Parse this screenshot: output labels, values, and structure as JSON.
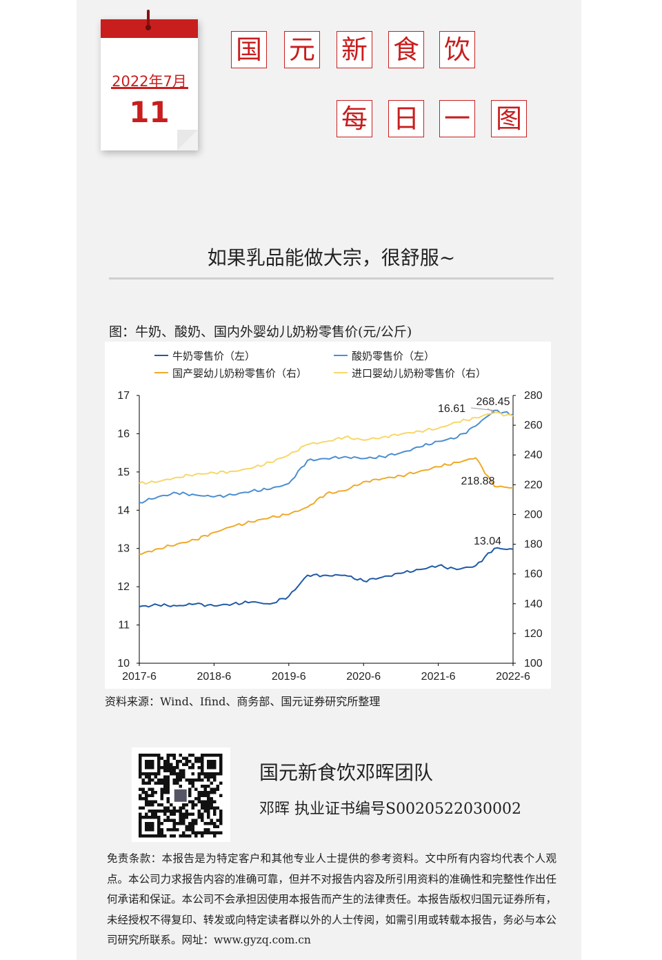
{
  "calendar": {
    "month": "2022年7月",
    "day": "11"
  },
  "title_chars": [
    "国",
    "元",
    "新",
    "食",
    "饮",
    "每",
    "日",
    "一",
    "图"
  ],
  "headline": "如果乳品能做大宗，很舒服~",
  "figure_title": "图：牛奶、酸奶、国内外婴幼儿奶粉零售价(元/公斤)",
  "source": "资料来源：Wind、Ifind、商务部、国元证券研究所整理",
  "team": "国元新食饮邓晖团队",
  "cert": "邓晖  执业证书编号S0020522030002",
  "disclaimer": "免责条款：本报告是为特定客户和其他专业人士提供的参考资料。文中所有内容均代表个人观点。本公司力求报告内容的准确可靠，但并不对报告内容及所引用资料的准确性和完整性作出任何承诺和保证。本公司不会承担因使用本报告而产生的法律责任。本报告版权归国元证券所有，未经授权不得复印、转发或向特定读者群以外的人士传阅，如需引用或转载本报告，务必与本公司研究所联系。网址：www.gyzq.com.cn",
  "chart_data": {
    "type": "line",
    "title": "",
    "x": [
      "2017-6",
      "2017-9",
      "2017-12",
      "2018-3",
      "2018-6",
      "2018-9",
      "2018-12",
      "2019-3",
      "2019-6",
      "2019-9",
      "2019-12",
      "2020-3",
      "2020-6",
      "2020-9",
      "2020-12",
      "2021-3",
      "2021-6",
      "2021-9",
      "2021-12",
      "2022-3",
      "2022-6"
    ],
    "x_ticks": [
      "2017-6",
      "2018-6",
      "2019-6",
      "2020-6",
      "2021-6",
      "2022-6"
    ],
    "left_axis": {
      "ylim": [
        10,
        17
      ],
      "ticks": [
        "10",
        "11",
        "12",
        "13",
        "14",
        "15",
        "16",
        "17"
      ]
    },
    "right_axis": {
      "ylim": [
        100,
        280
      ],
      "ticks": [
        "100",
        "120",
        "140",
        "160",
        "180",
        "200",
        "220",
        "240",
        "260",
        "280"
      ]
    },
    "series": [
      {
        "name": "牛奶零售价（左）",
        "axis": "left",
        "color": "#1f5aa6",
        "values": [
          11.48,
          11.52,
          11.5,
          11.55,
          11.5,
          11.55,
          11.6,
          11.55,
          11.75,
          12.3,
          12.3,
          12.3,
          12.15,
          12.25,
          12.35,
          12.45,
          12.55,
          12.45,
          12.55,
          13.0,
          12.98
        ]
      },
      {
        "name": "酸奶零售价（左）",
        "axis": "left",
        "color": "#4a8ed0",
        "values": [
          14.2,
          14.35,
          14.45,
          14.4,
          14.35,
          14.4,
          14.5,
          14.55,
          14.7,
          15.3,
          15.35,
          15.4,
          15.35,
          15.4,
          15.5,
          15.65,
          15.8,
          15.9,
          16.2,
          16.61,
          16.5
        ]
      },
      {
        "name": "国产婴幼儿奶粉零售价（右）",
        "axis": "right",
        "color": "#f0a928",
        "values": [
          173,
          177,
          180,
          183,
          188,
          192,
          195,
          198,
          200,
          205,
          214,
          216,
          222,
          224,
          226,
          229,
          232,
          235,
          238,
          218.88,
          218
        ]
      },
      {
        "name": "进口婴幼儿奶粉零售价（右）",
        "axis": "right",
        "color": "#f7d76a",
        "values": [
          221,
          222,
          225,
          227,
          228,
          229,
          231,
          235,
          240,
          247,
          249,
          252,
          250,
          252,
          254,
          256,
          258,
          262,
          265,
          268.45,
          266
        ]
      }
    ],
    "annotations": [
      "16.61",
      "268.45",
      "218.88",
      "13.04"
    ],
    "legend": "top",
    "grid": false
  }
}
